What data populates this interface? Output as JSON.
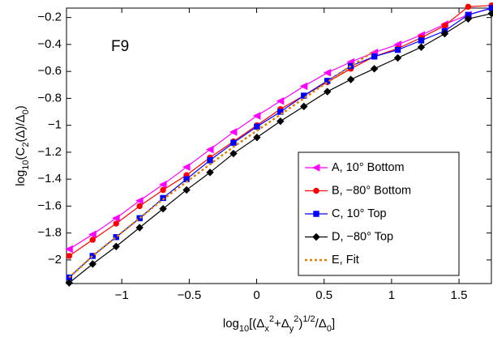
{
  "chart_data": {
    "type": "line",
    "annotation": "F9",
    "xlabel": [
      "log",
      "10",
      "[(Δ",
      "x",
      "2",
      "+Δ",
      "y",
      "2",
      ")",
      "1/2",
      "/Δ",
      "0",
      "]"
    ],
    "ylabel": [
      "log",
      "10",
      "(C",
      "2",
      "(Δ)/Δ",
      "0",
      ")"
    ],
    "x": [
      -1.39,
      -1.216,
      -1.042,
      -0.868,
      -0.694,
      -0.52,
      -0.346,
      -0.172,
      0.002,
      0.176,
      0.35,
      0.524,
      0.698,
      0.872,
      1.046,
      1.22,
      1.394,
      1.568,
      1.742
    ],
    "series": [
      {
        "name": "A,  10° Bottom",
        "color": "#ff00ff",
        "marker": "triangle-left",
        "values": [
          -1.92,
          -1.81,
          -1.69,
          -1.56,
          -1.44,
          -1.31,
          -1.18,
          -1.05,
          -0.93,
          -0.82,
          -0.71,
          -0.61,
          -0.53,
          -0.46,
          -0.4,
          -0.33,
          -0.25,
          -0.18,
          -0.13
        ]
      },
      {
        "name": "B, −80° Bottom",
        "color": "#ff0000",
        "marker": "circle",
        "values": [
          -1.97,
          -1.85,
          -1.73,
          -1.6,
          -1.48,
          -1.37,
          -1.24,
          -1.12,
          -1.0,
          -0.88,
          -0.78,
          -0.68,
          -0.58,
          -0.49,
          -0.43,
          -0.35,
          -0.26,
          -0.12,
          -0.11
        ]
      },
      {
        "name": "C,  10° Top",
        "color": "#0000ff",
        "marker": "square",
        "values": [
          -2.13,
          -1.97,
          -1.83,
          -1.69,
          -1.54,
          -1.4,
          -1.26,
          -1.13,
          -1.01,
          -0.9,
          -0.78,
          -0.67,
          -0.56,
          -0.49,
          -0.44,
          -0.37,
          -0.3,
          -0.18,
          -0.13
        ]
      },
      {
        "name": "D, −80° Top",
        "color": "#000000",
        "marker": "diamond",
        "values": [
          -2.17,
          -2.03,
          -1.9,
          -1.76,
          -1.62,
          -1.48,
          -1.35,
          -1.21,
          -1.09,
          -0.97,
          -0.86,
          -0.75,
          -0.66,
          -0.58,
          -0.5,
          -0.42,
          -0.32,
          -0.21,
          -0.17
        ]
      },
      {
        "name": "E, Fit",
        "color": "#e08000",
        "marker": "none",
        "dashed": true,
        "values": [
          -2.13,
          -1.97,
          -1.83,
          -1.69,
          -1.55,
          -1.42,
          -1.29,
          -1.16,
          -1.04,
          -0.92,
          -0.8,
          -0.68,
          -0.56,
          -0.45,
          null,
          null,
          null,
          null,
          null
        ]
      }
    ],
    "xlim": [
      -1.41,
      1.74
    ],
    "ylim": [
      -2.175,
      -0.13
    ],
    "xticks": [
      {
        "value": -1,
        "label": "−1"
      },
      {
        "value": -0.5,
        "label": "−0.5"
      },
      0,
      0.5,
      1,
      1.5
    ],
    "yticks": [
      {
        "value": -2,
        "label": "−2"
      },
      {
        "value": -1.8,
        "label": "−1.8"
      },
      {
        "value": -1.6,
        "label": "−1.6"
      },
      {
        "value": -1.4,
        "label": "−1.4"
      },
      {
        "value": -1.2,
        "label": "−1.2"
      },
      {
        "value": -1,
        "label": "−1"
      },
      {
        "value": -0.8,
        "label": "−0.8"
      },
      {
        "value": -0.6,
        "label": "−0.6"
      },
      {
        "value": -0.4,
        "label": "−0.4"
      },
      {
        "value": -0.2,
        "label": "−0.2"
      }
    ],
    "grid": false,
    "legend": "lower right"
  }
}
